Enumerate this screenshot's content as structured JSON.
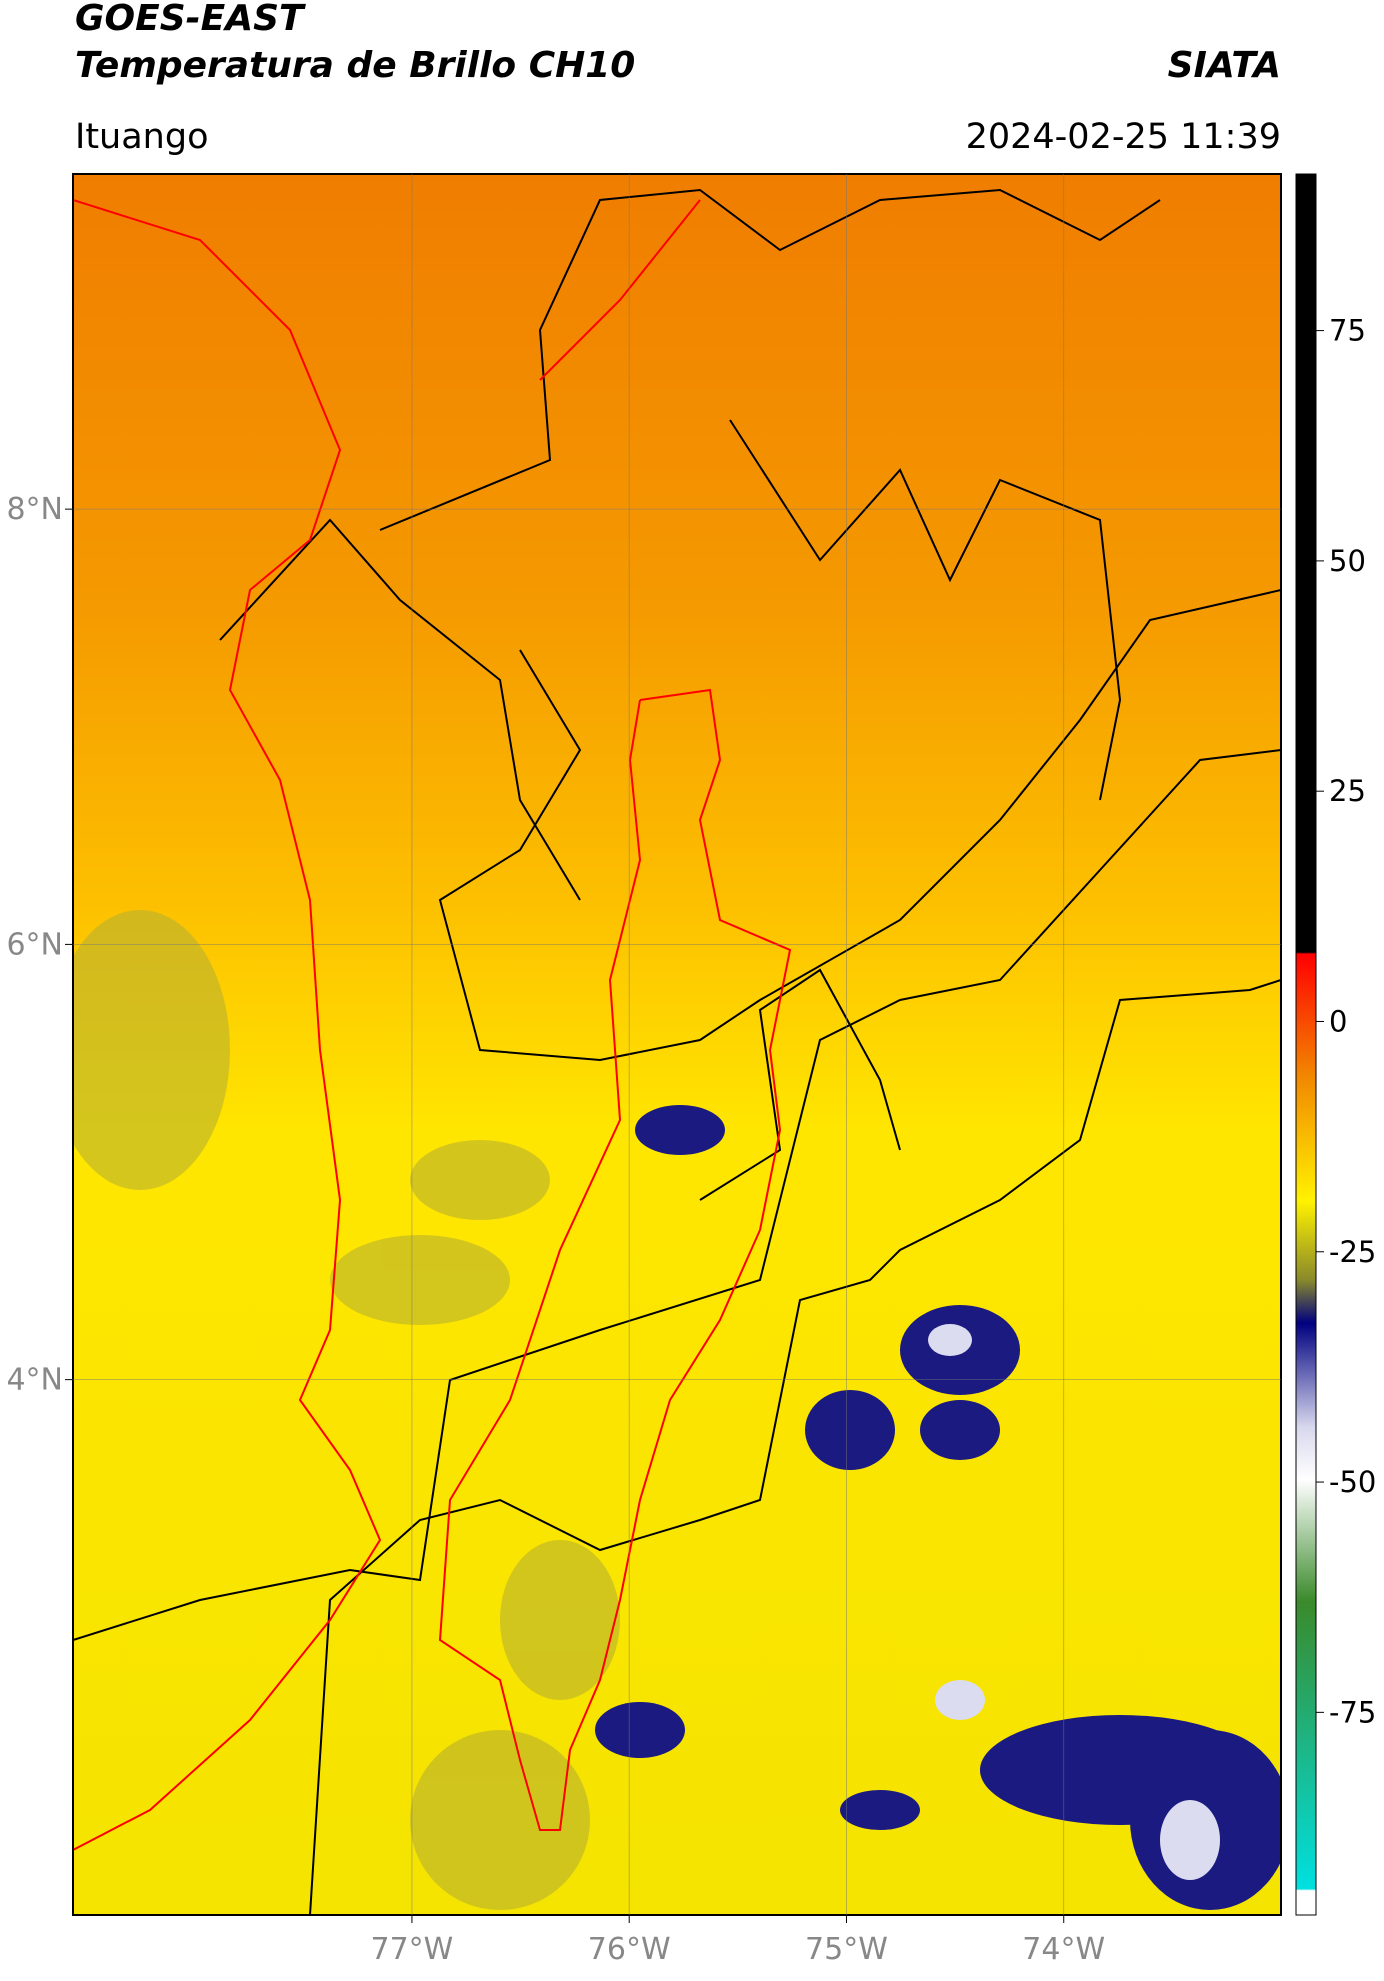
{
  "header": {
    "title": "GOES-EAST",
    "subtitle": "Temperatura de Brillo CH10",
    "brand": "SIATA",
    "location": "Ituango",
    "datetime": "2024-02-25 11:39"
  },
  "map": {
    "xlim": [
      -78.56,
      -73.0
    ],
    "ylim": [
      1.54,
      9.54
    ],
    "xticks": [
      {
        "value": -77,
        "label": "77°W"
      },
      {
        "value": -76,
        "label": "76°W"
      },
      {
        "value": -75,
        "label": "75°W"
      },
      {
        "value": -74,
        "label": "74°W"
      }
    ],
    "yticks": [
      {
        "value": 8,
        "label": "8°N"
      },
      {
        "value": 6,
        "label": "6°N"
      },
      {
        "value": 4,
        "label": "4°N"
      }
    ]
  },
  "colorbar": {
    "lim": [
      -97,
      92
    ],
    "ticks": [
      75,
      50,
      25,
      0,
      -25,
      -50,
      -75
    ]
  }
}
